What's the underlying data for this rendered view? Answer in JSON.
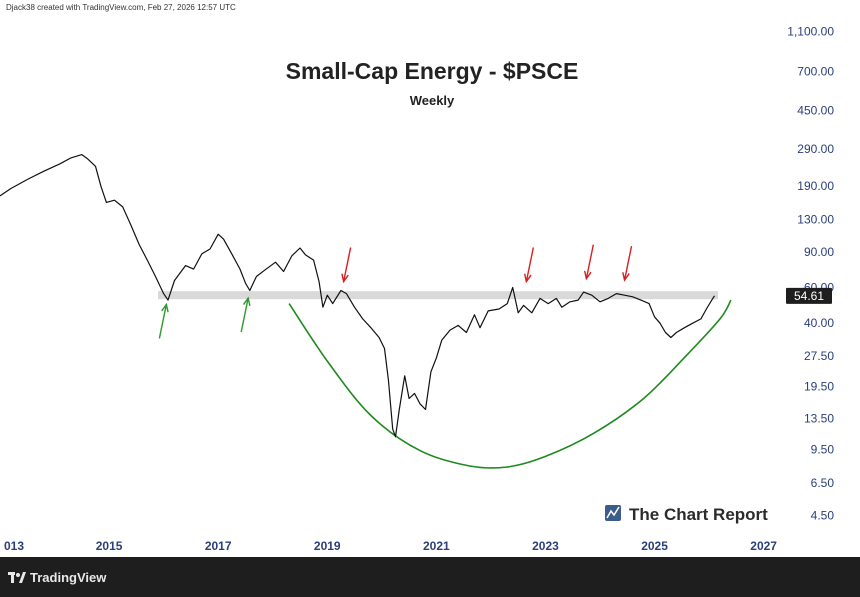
{
  "header": {
    "credit": "Djack38 created with TradingView.com, Feb 27, 2026 12:57 UTC"
  },
  "footer": {
    "brand": "TradingView",
    "logo_icon": "tradingview-logo-icon"
  },
  "watermark": {
    "text": "The Chart Report",
    "icon": "chart-report-logo-icon"
  },
  "colors": {
    "price_line": "#111111",
    "cup_curve": "#1f8a1f",
    "green_arrow": "#2e9a2e",
    "red_arrow": "#d42020",
    "resistance_band": "#d9d9d9",
    "axis_text": "#2a3f7a",
    "last_price_badge": "#1e1e1e"
  },
  "chart_data": {
    "type": "line",
    "title": "Small-Cap Energy - $PSCE",
    "subtitle": "Weekly",
    "y_scale": "log",
    "ylim": [
      3.6,
      1300
    ],
    "xlim": [
      2013.0,
      2027.3
    ],
    "x_ticks": [
      "013",
      "2015",
      "2017",
      "2019",
      "2021",
      "2023",
      "2025",
      "2027"
    ],
    "x_tick_values": [
      2013.0,
      2015,
      2017,
      2019,
      2021,
      2023,
      2025,
      2027
    ],
    "y_ticks": [
      "1,100.00",
      "700.00",
      "450.00",
      "290.00",
      "190.00",
      "130.00",
      "90.00",
      "60.00",
      "40.00",
      "27.50",
      "19.50",
      "13.50",
      "9.50",
      "6.50",
      "4.50"
    ],
    "y_tick_values": [
      1100,
      700,
      450,
      290,
      190,
      130,
      90,
      60,
      40,
      27.5,
      19.5,
      13.5,
      9.5,
      6.5,
      4.5
    ],
    "last_price": "54.61",
    "last_price_value": 54.61,
    "resistance_level": 55,
    "series": [
      {
        "points": [
          [
            2013.0,
            170
          ],
          [
            2013.2,
            185
          ],
          [
            2013.5,
            205
          ],
          [
            2013.8,
            225
          ],
          [
            2014.1,
            245
          ],
          [
            2014.3,
            262
          ],
          [
            2014.5,
            272
          ],
          [
            2014.6,
            260
          ],
          [
            2014.75,
            238
          ],
          [
            2014.85,
            190
          ],
          [
            2014.95,
            158
          ],
          [
            2015.1,
            162
          ],
          [
            2015.25,
            150
          ],
          [
            2015.4,
            122
          ],
          [
            2015.55,
            98
          ],
          [
            2015.7,
            82
          ],
          [
            2015.85,
            68
          ],
          [
            2016.0,
            56
          ],
          [
            2016.08,
            52
          ],
          [
            2016.2,
            65
          ],
          [
            2016.4,
            77
          ],
          [
            2016.55,
            74
          ],
          [
            2016.7,
            88
          ],
          [
            2016.85,
            93
          ],
          [
            2017.0,
            110
          ],
          [
            2017.1,
            104
          ],
          [
            2017.25,
            88
          ],
          [
            2017.4,
            74
          ],
          [
            2017.5,
            63
          ],
          [
            2017.58,
            58
          ],
          [
            2017.7,
            68
          ],
          [
            2017.85,
            73
          ],
          [
            2018.05,
            80
          ],
          [
            2018.2,
            72
          ],
          [
            2018.35,
            86
          ],
          [
            2018.5,
            94
          ],
          [
            2018.6,
            87
          ],
          [
            2018.75,
            82
          ],
          [
            2018.85,
            64
          ],
          [
            2018.92,
            48
          ],
          [
            2019.0,
            55
          ],
          [
            2019.1,
            50
          ],
          [
            2019.25,
            58
          ],
          [
            2019.35,
            56
          ],
          [
            2019.5,
            48
          ],
          [
            2019.65,
            42
          ],
          [
            2019.8,
            38
          ],
          [
            2019.95,
            34
          ],
          [
            2020.05,
            30
          ],
          [
            2020.12,
            21
          ],
          [
            2020.2,
            12
          ],
          [
            2020.25,
            11
          ],
          [
            2020.32,
            15
          ],
          [
            2020.42,
            22
          ],
          [
            2020.5,
            17
          ],
          [
            2020.6,
            18
          ],
          [
            2020.7,
            16
          ],
          [
            2020.8,
            15
          ],
          [
            2020.9,
            23
          ],
          [
            2021.0,
            27
          ],
          [
            2021.1,
            33
          ],
          [
            2021.25,
            37
          ],
          [
            2021.4,
            39
          ],
          [
            2021.55,
            36
          ],
          [
            2021.7,
            44
          ],
          [
            2021.8,
            38
          ],
          [
            2021.95,
            46
          ],
          [
            2022.15,
            47
          ],
          [
            2022.3,
            50
          ],
          [
            2022.4,
            60
          ],
          [
            2022.5,
            45
          ],
          [
            2022.6,
            49
          ],
          [
            2022.75,
            45
          ],
          [
            2022.9,
            53
          ],
          [
            2023.05,
            50
          ],
          [
            2023.2,
            53
          ],
          [
            2023.3,
            48
          ],
          [
            2023.45,
            51
          ],
          [
            2023.6,
            52
          ],
          [
            2023.7,
            57
          ],
          [
            2023.85,
            55
          ],
          [
            2024.0,
            51
          ],
          [
            2024.15,
            53
          ],
          [
            2024.3,
            56
          ],
          [
            2024.45,
            55
          ],
          [
            2024.6,
            54
          ],
          [
            2024.75,
            52
          ],
          [
            2024.9,
            50
          ],
          [
            2025.0,
            43
          ],
          [
            2025.1,
            40
          ],
          [
            2025.2,
            36
          ],
          [
            2025.3,
            34
          ],
          [
            2025.4,
            36
          ],
          [
            2025.55,
            38
          ],
          [
            2025.7,
            40
          ],
          [
            2025.85,
            42
          ],
          [
            2025.95,
            47
          ],
          [
            2026.05,
            52
          ],
          [
            2026.1,
            54.61
          ]
        ]
      }
    ],
    "cup_curve": [
      [
        2018.3,
        50
      ],
      [
        2019.0,
        26
      ],
      [
        2019.8,
        14
      ],
      [
        2020.7,
        9.4
      ],
      [
        2021.6,
        7.9
      ],
      [
        2022.3,
        7.8
      ],
      [
        2023.0,
        8.8
      ],
      [
        2023.9,
        11.5
      ],
      [
        2024.8,
        17
      ],
      [
        2025.6,
        28
      ],
      [
        2026.2,
        42
      ],
      [
        2026.4,
        52
      ]
    ],
    "green_arrows": [
      [
        2016.05,
        53
      ],
      [
        2017.55,
        57
      ]
    ],
    "red_arrows": [
      [
        2019.3,
        60
      ],
      [
        2022.65,
        60
      ],
      [
        2023.75,
        62
      ],
      [
        2024.45,
        61
      ]
    ]
  }
}
